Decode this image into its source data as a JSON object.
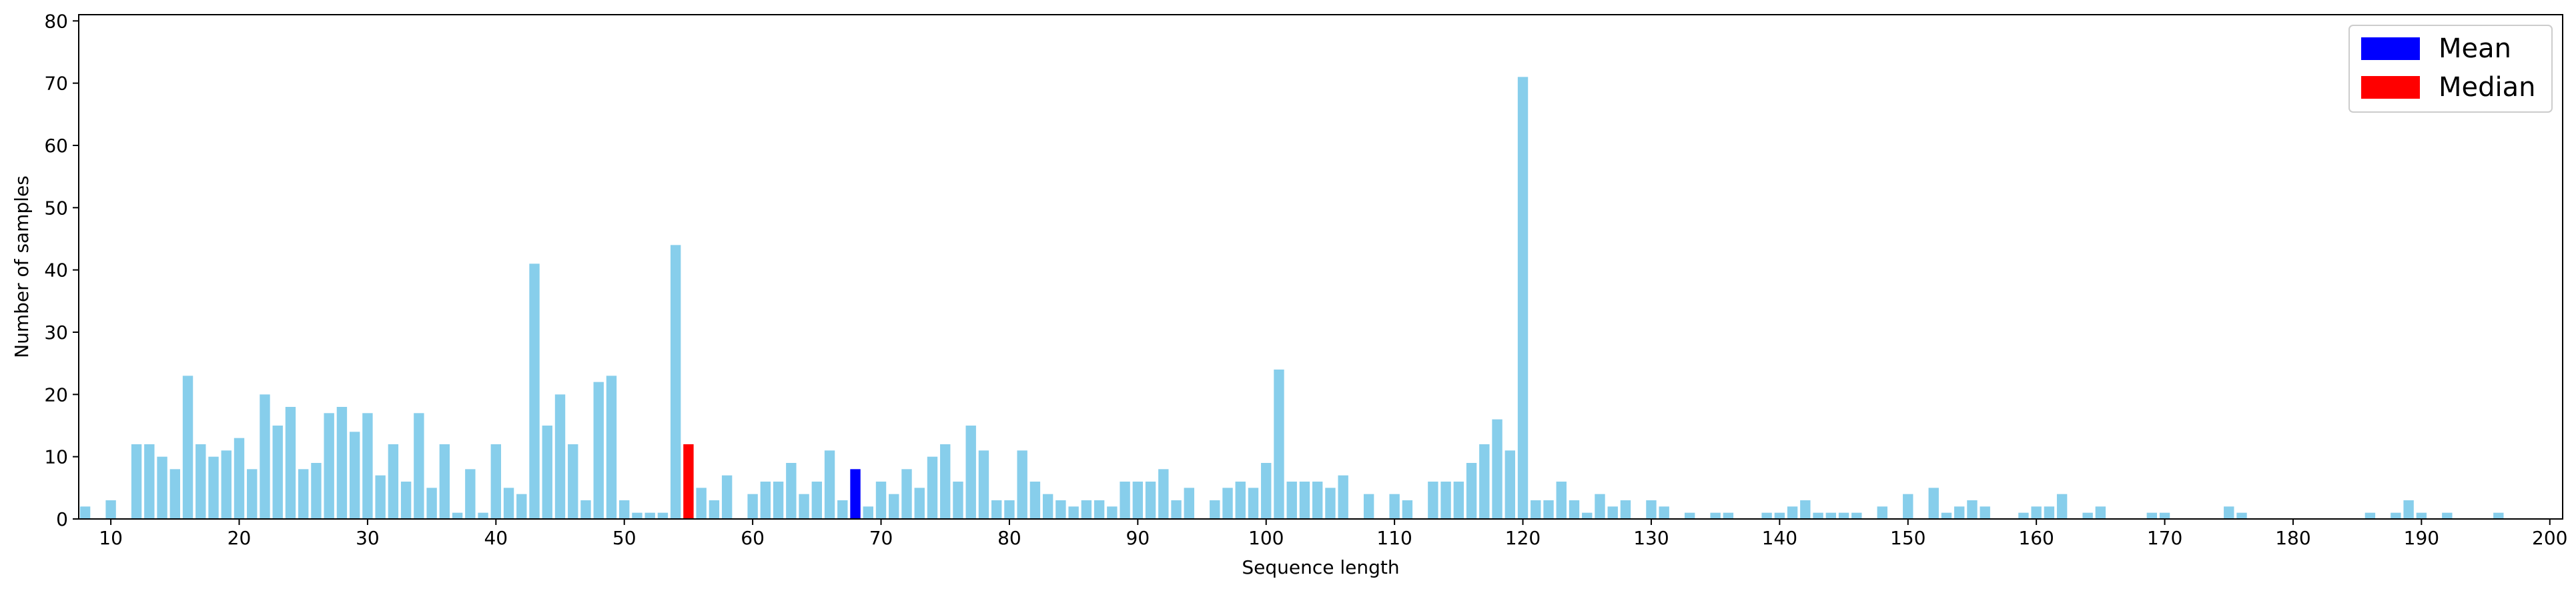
{
  "chart_data": {
    "type": "bar",
    "xlabel": "Sequence length",
    "ylabel": "Number of samples",
    "xlim": [
      7.5,
      201
    ],
    "ylim": [
      0,
      81
    ],
    "xticks": [
      10,
      20,
      30,
      40,
      50,
      60,
      70,
      80,
      90,
      100,
      110,
      120,
      130,
      140,
      150,
      160,
      170,
      180,
      190,
      200
    ],
    "yticks": [
      0,
      10,
      20,
      30,
      40,
      50,
      60,
      70,
      80
    ],
    "grid": false,
    "legend_position": "top-right",
    "colors": {
      "bar": "#87ceeb",
      "mean": "#0000ff",
      "median": "#ff0000"
    },
    "legend": [
      {
        "label": "Mean",
        "color": "#0000ff"
      },
      {
        "label": "Median",
        "color": "#ff0000"
      }
    ],
    "mean_x": 68,
    "median_x": 55,
    "points": [
      [
        8,
        2
      ],
      [
        10,
        3
      ],
      [
        12,
        12
      ],
      [
        13,
        12
      ],
      [
        14,
        10
      ],
      [
        15,
        8
      ],
      [
        16,
        23
      ],
      [
        17,
        12
      ],
      [
        18,
        10
      ],
      [
        19,
        11
      ],
      [
        20,
        13
      ],
      [
        21,
        8
      ],
      [
        22,
        20
      ],
      [
        23,
        15
      ],
      [
        24,
        18
      ],
      [
        25,
        8
      ],
      [
        26,
        9
      ],
      [
        27,
        17
      ],
      [
        28,
        18
      ],
      [
        29,
        14
      ],
      [
        30,
        17
      ],
      [
        31,
        7
      ],
      [
        32,
        12
      ],
      [
        33,
        6
      ],
      [
        34,
        17
      ],
      [
        35,
        5
      ],
      [
        36,
        12
      ],
      [
        37,
        1
      ],
      [
        38,
        8
      ],
      [
        39,
        1
      ],
      [
        40,
        12
      ],
      [
        41,
        5
      ],
      [
        42,
        4
      ],
      [
        43,
        41
      ],
      [
        44,
        15
      ],
      [
        45,
        20
      ],
      [
        46,
        12
      ],
      [
        47,
        3
      ],
      [
        48,
        22
      ],
      [
        49,
        23
      ],
      [
        50,
        3
      ],
      [
        51,
        1
      ],
      [
        52,
        1
      ],
      [
        53,
        1
      ],
      [
        54,
        44
      ],
      [
        55,
        12
      ],
      [
        56,
        5
      ],
      [
        57,
        3
      ],
      [
        58,
        7
      ],
      [
        60,
        4
      ],
      [
        61,
        6
      ],
      [
        62,
        6
      ],
      [
        63,
        9
      ],
      [
        64,
        4
      ],
      [
        65,
        6
      ],
      [
        66,
        11
      ],
      [
        67,
        3
      ],
      [
        68,
        8
      ],
      [
        69,
        2
      ],
      [
        70,
        6
      ],
      [
        71,
        4
      ],
      [
        72,
        8
      ],
      [
        73,
        5
      ],
      [
        74,
        10
      ],
      [
        75,
        12
      ],
      [
        76,
        6
      ],
      [
        77,
        15
      ],
      [
        78,
        11
      ],
      [
        79,
        3
      ],
      [
        80,
        3
      ],
      [
        81,
        11
      ],
      [
        82,
        6
      ],
      [
        83,
        4
      ],
      [
        84,
        3
      ],
      [
        85,
        2
      ],
      [
        86,
        3
      ],
      [
        87,
        3
      ],
      [
        88,
        2
      ],
      [
        89,
        6
      ],
      [
        90,
        6
      ],
      [
        91,
        6
      ],
      [
        92,
        8
      ],
      [
        93,
        3
      ],
      [
        94,
        5
      ],
      [
        96,
        3
      ],
      [
        97,
        5
      ],
      [
        98,
        6
      ],
      [
        99,
        5
      ],
      [
        100,
        9
      ],
      [
        101,
        24
      ],
      [
        102,
        6
      ],
      [
        103,
        6
      ],
      [
        104,
        6
      ],
      [
        105,
        5
      ],
      [
        106,
        7
      ],
      [
        108,
        4
      ],
      [
        110,
        4
      ],
      [
        111,
        3
      ],
      [
        113,
        6
      ],
      [
        114,
        6
      ],
      [
        115,
        6
      ],
      [
        116,
        9
      ],
      [
        117,
        12
      ],
      [
        118,
        16
      ],
      [
        119,
        11
      ],
      [
        120,
        71
      ],
      [
        121,
        3
      ],
      [
        122,
        3
      ],
      [
        123,
        6
      ],
      [
        124,
        3
      ],
      [
        125,
        1
      ],
      [
        126,
        4
      ],
      [
        127,
        2
      ],
      [
        128,
        3
      ],
      [
        130,
        3
      ],
      [
        131,
        2
      ],
      [
        133,
        1
      ],
      [
        135,
        1
      ],
      [
        136,
        1
      ],
      [
        139,
        1
      ],
      [
        140,
        1
      ],
      [
        141,
        2
      ],
      [
        142,
        3
      ],
      [
        143,
        1
      ],
      [
        144,
        1
      ],
      [
        145,
        1
      ],
      [
        146,
        1
      ],
      [
        148,
        2
      ],
      [
        150,
        4
      ],
      [
        152,
        5
      ],
      [
        153,
        1
      ],
      [
        154,
        2
      ],
      [
        155,
        3
      ],
      [
        156,
        2
      ],
      [
        159,
        1
      ],
      [
        160,
        2
      ],
      [
        161,
        2
      ],
      [
        162,
        4
      ],
      [
        164,
        1
      ],
      [
        165,
        2
      ],
      [
        169,
        1
      ],
      [
        170,
        1
      ],
      [
        175,
        2
      ],
      [
        176,
        1
      ],
      [
        186,
        1
      ],
      [
        188,
        1
      ],
      [
        189,
        3
      ],
      [
        190,
        1
      ],
      [
        192,
        1
      ],
      [
        196,
        1
      ]
    ]
  }
}
